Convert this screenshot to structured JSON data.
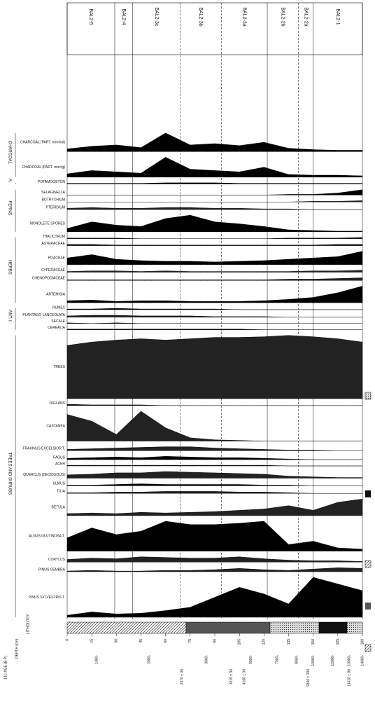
{
  "chart_data": {
    "type": "pollen",
    "depth_label": "DEPTH (cm)",
    "age_label": "14C AGE (B.P.)",
    "lithology_label": "LITHOLOGY",
    "depths": [
      0,
      15,
      30,
      45,
      60,
      75,
      90,
      105,
      120,
      135,
      150,
      165,
      180
    ],
    "depth_ticks": [
      0,
      15,
      30,
      45,
      60,
      75,
      90,
      105,
      120,
      135,
      150,
      165,
      180
    ],
    "xlim": [
      0,
      180
    ],
    "zones": [
      "BAL2-5",
      "BAL2-4",
      "BAL2-3c",
      "BAL2-3b",
      "BAL2-3a",
      "BAL2-2b",
      "BAL2-2a",
      "BAL2-1"
    ],
    "zone_boundaries": [
      0,
      29,
      40,
      69,
      94,
      122,
      141,
      150,
      180
    ],
    "age_ticks": [
      {
        "value": 18,
        "label": "1000-"
      },
      {
        "value": 50,
        "label": "2000-"
      },
      {
        "value": 85,
        "label": "3000-"
      },
      {
        "value": 112,
        "label": "5000-"
      },
      {
        "value": 128,
        "label": "7000-"
      },
      {
        "value": 140,
        "label": "9000-"
      },
      {
        "value": 150,
        "label": "10000-"
      },
      {
        "value": 162,
        "label": "12000-"
      },
      {
        "value": 172,
        "label": "13000-"
      },
      {
        "value": 180,
        "label": "14000-"
      }
    ],
    "dates": [
      {
        "value": 70,
        "label": "2470 ± 35"
      },
      {
        "value": 100,
        "label": "3215 ± 30"
      },
      {
        "value": 108,
        "label": "4160 ± 30"
      },
      {
        "value": 147,
        "label": "9340 ± 190"
      },
      {
        "value": 172,
        "label": "11410 ± 80"
      }
    ],
    "groups": [
      {
        "label": "TREES AND SHRUBS",
        "taxa": [
          {
            "name": "PINUS SYLVESTRIS T.",
            "values": [
              3,
              8,
              5,
              6,
              10,
              15,
              30,
              45,
              35,
              20,
              60,
              50,
              40
            ]
          },
          {
            "name": "PINUS CEMBRA",
            "values": [
              1,
              2,
              1,
              1,
              2,
              2,
              3,
              5,
              3,
              2,
              4,
              6,
              5
            ]
          },
          {
            "name": "CORYLUS",
            "values": [
              4,
              6,
              5,
              8,
              7,
              6,
              6,
              8,
              5,
              3,
              2,
              2,
              1
            ]
          },
          {
            "name": "ALNUS GLUTINOSA T.",
            "values": [
              20,
              35,
              25,
              30,
              45,
              40,
              40,
              42,
              45,
              10,
              15,
              5,
              3
            ]
          },
          {
            "name": "BETULA",
            "values": [
              3,
              4,
              3,
              5,
              4,
              5,
              6,
              8,
              10,
              15,
              8,
              20,
              25
            ]
          },
          {
            "name": "TILIA",
            "values": [
              1,
              1,
              2,
              2,
              3,
              3,
              3,
              2,
              2,
              1,
              0,
              0,
              0
            ]
          },
          {
            "name": "ULMUS",
            "values": [
              1,
              1,
              2,
              3,
              2,
              2,
              2,
              2,
              1,
              1,
              0,
              0,
              0
            ]
          },
          {
            "name": "QUERCUS (DECIDUOUS)",
            "values": [
              5,
              6,
              8,
              8,
              10,
              9,
              8,
              7,
              6,
              3,
              2,
              1,
              1
            ]
          },
          {
            "name": "ACER",
            "values": [
              1,
              1,
              1,
              1,
              1,
              1,
              1,
              1,
              1,
              0,
              0,
              0,
              0
            ]
          },
          {
            "name": "FAGUS",
            "values": [
              2,
              3,
              4,
              3,
              5,
              4,
              3,
              3,
              2,
              1,
              0,
              0,
              0
            ]
          },
          {
            "name": "FRAXINUS EXCELSIOR T.",
            "values": [
              2,
              3,
              4,
              5,
              6,
              6,
              4,
              3,
              2,
              1,
              1,
              0,
              0
            ]
          },
          {
            "name": "CASTANEA",
            "values": [
              40,
              30,
              10,
              45,
              20,
              5,
              2,
              1,
              0,
              0,
              0,
              0,
              0
            ]
          },
          {
            "name": "JUGLANS",
            "values": [
              2,
              1,
              1,
              1,
              0,
              0,
              0,
              0,
              0,
              0,
              0,
              0,
              0
            ]
          },
          {
            "name": "TREES",
            "values": [
              80,
              85,
              88,
              90,
              88,
              90,
              92,
              92,
              93,
              95,
              93,
              90,
              85
            ]
          }
        ]
      },
      {
        "label": "ANT. I.",
        "taxa": [
          {
            "name": "CEREALIA",
            "values": [
              1,
              1,
              1,
              1,
              1,
              1,
              1,
              1,
              0,
              0,
              0,
              0,
              0
            ]
          },
          {
            "name": "SECALE",
            "values": [
              1,
              0,
              1,
              0,
              0,
              0,
              0,
              0,
              0,
              0,
              0,
              0,
              0
            ]
          },
          {
            "name": "PLANTAGO LANCEOLATA",
            "values": [
              2,
              3,
              3,
              2,
              2,
              2,
              1,
              1,
              1,
              0,
              0,
              0,
              0
            ]
          },
          {
            "name": "RUMEX",
            "values": [
              1,
              1,
              2,
              1,
              1,
              1,
              1,
              0,
              0,
              0,
              0,
              0,
              0
            ]
          }
        ]
      },
      {
        "label": "HERBS",
        "taxa": [
          {
            "name": "ARTEMISIA",
            "values": [
              3,
              4,
              2,
              3,
              3,
              2,
              2,
              2,
              3,
              5,
              8,
              15,
              25
            ]
          },
          {
            "name": "CHENOPODIACEAE",
            "values": [
              1,
              1,
              1,
              1,
              1,
              1,
              1,
              1,
              1,
              2,
              2,
              3,
              4
            ]
          },
          {
            "name": "CYPERACEAE",
            "values": [
              1,
              2,
              2,
              1,
              2,
              1,
              1,
              1,
              1,
              1,
              2,
              2,
              3
            ]
          },
          {
            "name": "POACEAE",
            "values": [
              10,
              15,
              8,
              6,
              5,
              5,
              4,
              5,
              6,
              8,
              10,
              12,
              20
            ]
          },
          {
            "name": "ASTERACEAE",
            "values": [
              2,
              2,
              1,
              1,
              1,
              1,
              1,
              1,
              1,
              1,
              1,
              2,
              2
            ]
          },
          {
            "name": "THALICTRUM",
            "values": [
              1,
              1,
              1,
              0,
              0,
              0,
              0,
              0,
              0,
              1,
              1,
              1,
              2
            ]
          }
        ]
      },
      {
        "label": "FERNS",
        "taxa": [
          {
            "name": "MONOLETE SPORES",
            "values": [
              5,
              15,
              10,
              8,
              20,
              25,
              15,
              12,
              8,
              3,
              2,
              1,
              1
            ]
          },
          {
            "name": "PTERIDIUM",
            "values": [
              2,
              3,
              2,
              2,
              3,
              3,
              2,
              2,
              1,
              1,
              0,
              0,
              0
            ]
          },
          {
            "name": "BOTRYCHIUM",
            "values": [
              0,
              0,
              0,
              0,
              0,
              0,
              0,
              0,
              0,
              0,
              1,
              1,
              2
            ]
          },
          {
            "name": "SELAGINELLA",
            "values": [
              0,
              0,
              0,
              0,
              0,
              0,
              0,
              0,
              0,
              1,
              1,
              3,
              8
            ]
          }
        ]
      },
      {
        "label": "A.",
        "taxa": [
          {
            "name": "POTAMOGETON",
            "values": [
              1,
              1,
              1,
              1,
              2,
              2,
              2,
              1,
              1,
              1,
              1,
              1,
              1
            ]
          }
        ]
      },
      {
        "label": "CHARCOAL",
        "taxa": [
          {
            "name": "CHARCOAL (PART. mm²/g)",
            "values": [
              5,
              10,
              8,
              6,
              30,
              12,
              10,
              8,
              15,
              4,
              3,
              3,
              2
            ]
          },
          {
            "name": "CHARCOAL (PART. mm²/ml)",
            "values": [
              4,
              8,
              10,
              6,
              28,
              10,
              12,
              9,
              14,
              5,
              3,
              2,
              2
            ]
          }
        ]
      }
    ]
  }
}
